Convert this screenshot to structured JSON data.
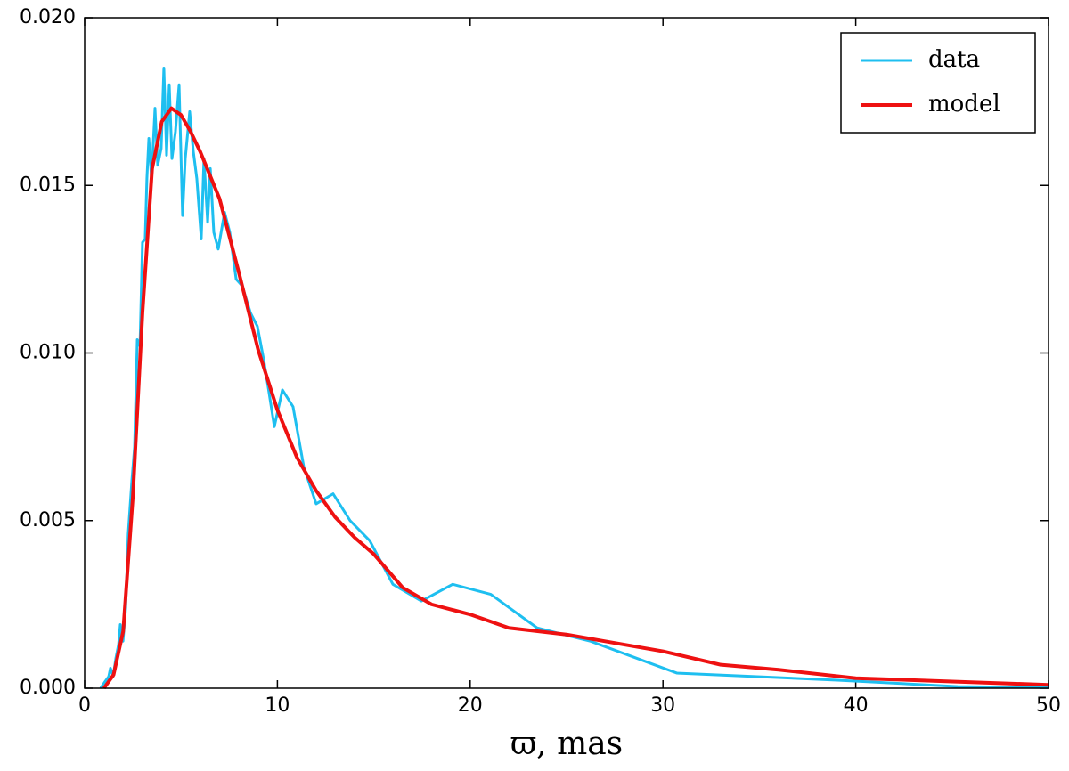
{
  "chart_data": {
    "type": "line",
    "xlabel": "ϖ,  mas",
    "xlim": [
      0,
      50
    ],
    "ylim": [
      0,
      0.02
    ],
    "xticks": [
      0,
      10,
      20,
      30,
      40,
      50
    ],
    "yticks": [
      {
        "value": 0,
        "label": "0.000"
      },
      {
        "value": 0.005,
        "label": "0.005"
      },
      {
        "value": 0.01,
        "label": "0.010"
      },
      {
        "value": 0.015,
        "label": "0.015"
      },
      {
        "value": 0.02,
        "label": "0.020"
      }
    ],
    "legend": "upper right",
    "series": [
      {
        "name": "data",
        "color": "#1ebff0",
        "x": [
          0.83,
          1.06,
          1.25,
          1.34,
          1.48,
          1.62,
          1.76,
          1.85,
          1.99,
          2.13,
          2.26,
          2.45,
          2.59,
          2.73,
          2.87,
          3.0,
          3.14,
          3.23,
          3.33,
          3.47,
          3.65,
          3.79,
          3.97,
          4.11,
          4.25,
          4.39,
          4.53,
          4.71,
          4.9,
          5.08,
          5.22,
          5.45,
          5.64,
          5.82,
          6.05,
          6.19,
          6.38,
          6.52,
          6.7,
          6.93,
          7.26,
          7.53,
          7.86,
          8.18,
          8.6,
          8.96,
          9.29,
          9.57,
          9.84,
          10.26,
          10.81,
          11.37,
          12.01,
          12.89,
          13.77,
          14.79,
          15.99,
          17.47,
          19.09,
          21.07,
          23.47,
          26.25,
          30.73,
          39.05,
          45.29,
          50
        ],
        "values": [
          0,
          0.0002,
          0.00035,
          0.0006,
          0.00035,
          0.0009,
          0.0013,
          0.0019,
          0.0014,
          0.0024,
          0.0046,
          0.0062,
          0.0072,
          0.0104,
          0.0102,
          0.0133,
          0.0134,
          0.0152,
          0.0164,
          0.0152,
          0.0173,
          0.0156,
          0.0161,
          0.0185,
          0.0159,
          0.018,
          0.0158,
          0.0166,
          0.018,
          0.0141,
          0.0158,
          0.0172,
          0.016,
          0.0152,
          0.0134,
          0.0158,
          0.0139,
          0.0155,
          0.0136,
          0.0131,
          0.0142,
          0.0136,
          0.0122,
          0.012,
          0.0112,
          0.0108,
          0.0098,
          0.0088,
          0.0078,
          0.0089,
          0.0084,
          0.0066,
          0.0055,
          0.0058,
          0.005,
          0.0044,
          0.0031,
          0.0026,
          0.0031,
          0.0028,
          0.0018,
          0.0014,
          0.00045,
          0.00024,
          5e-05,
          2e-05
        ]
      },
      {
        "name": "model",
        "color": "#ee1111",
        "x": [
          1,
          1.5,
          2,
          2.5,
          3,
          3.5,
          4,
          4.5,
          5,
          5.5,
          6,
          7,
          8,
          9,
          10,
          11,
          12,
          13,
          14,
          15,
          16.5,
          18,
          20,
          22,
          25,
          27,
          30,
          33,
          36,
          40,
          45,
          50
        ],
        "values": [
          0,
          0.0004,
          0.0017,
          0.0057,
          0.0112,
          0.0155,
          0.0169,
          0.0173,
          0.0171,
          0.0166,
          0.016,
          0.0146,
          0.0124,
          0.0101,
          0.0083,
          0.0069,
          0.0059,
          0.0051,
          0.0045,
          0.004,
          0.003,
          0.0025,
          0.0022,
          0.0018,
          0.0016,
          0.0014,
          0.0011,
          0.0007,
          0.00055,
          0.0003,
          0.0002,
          0.0001
        ]
      }
    ]
  }
}
